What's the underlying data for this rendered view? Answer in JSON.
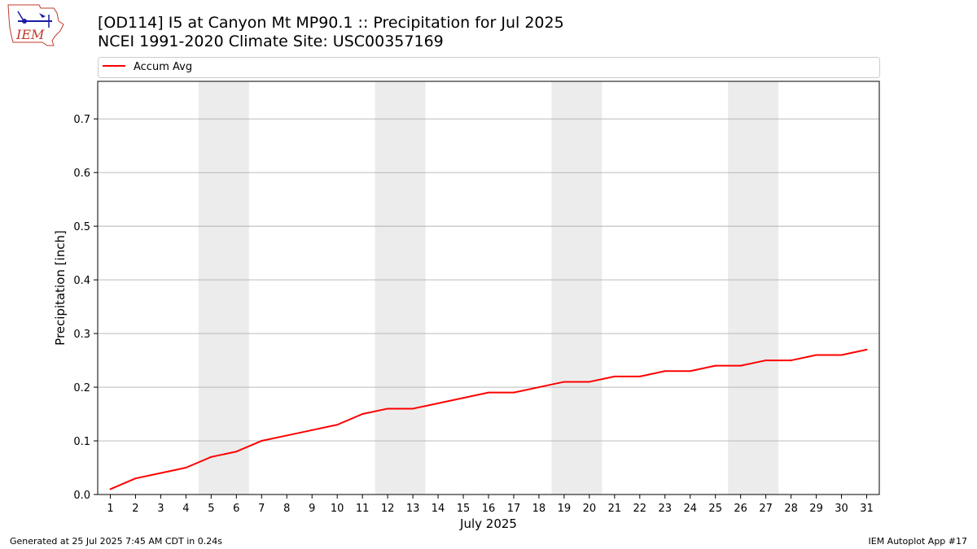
{
  "logo": {
    "text": "IEM"
  },
  "header": {
    "title_line1": "[OD114] I5 at Canyon Mt MP90.1  :: Precipitation for Jul 2025",
    "title_line2": "NCEI 1991-2020 Climate Site: USC00357169"
  },
  "footer": {
    "generated": "Generated at 25 Jul 2025 7:45 AM CDT in 0.24s",
    "app": "IEM Autoplot App #17"
  },
  "colors": {
    "series": "#ff0000",
    "weekend_band": "#ececec",
    "grid": "#b0b0b0"
  },
  "chart_data": {
    "type": "line",
    "xlabel": "July 2025",
    "ylabel": "Precipitation [inch]",
    "xlim": [
      0.5,
      31.5
    ],
    "ylim": [
      0,
      0.77
    ],
    "yticks": [
      0.0,
      0.1,
      0.2,
      0.3,
      0.4,
      0.5,
      0.6,
      0.7
    ],
    "ytick_labels": [
      "0.0",
      "0.1",
      "0.2",
      "0.3",
      "0.4",
      "0.5",
      "0.6",
      "0.7"
    ],
    "x": [
      1,
      2,
      3,
      4,
      5,
      6,
      7,
      8,
      9,
      10,
      11,
      12,
      13,
      14,
      15,
      16,
      17,
      18,
      19,
      20,
      21,
      22,
      23,
      24,
      25,
      26,
      27,
      28,
      29,
      30,
      31
    ],
    "xtick_labels": [
      "1",
      "2",
      "3",
      "4",
      "5",
      "6",
      "7",
      "8",
      "9",
      "10",
      "11",
      "12",
      "13",
      "14",
      "15",
      "16",
      "17",
      "18",
      "19",
      "20",
      "21",
      "22",
      "23",
      "24",
      "25",
      "26",
      "27",
      "28",
      "29",
      "30",
      "31"
    ],
    "grid": "horizontal",
    "legend_position": "top",
    "shaded_days": [
      [
        5,
        6
      ],
      [
        12,
        13
      ],
      [
        19,
        20
      ],
      [
        26,
        27
      ]
    ],
    "series": [
      {
        "name": "Accum Avg",
        "values": [
          0.01,
          0.03,
          0.04,
          0.05,
          0.07,
          0.08,
          0.1,
          0.11,
          0.12,
          0.13,
          0.15,
          0.16,
          0.16,
          0.17,
          0.18,
          0.19,
          0.19,
          0.2,
          0.21,
          0.21,
          0.22,
          0.22,
          0.23,
          0.23,
          0.24,
          0.24,
          0.25,
          0.25,
          0.26,
          0.26,
          0.27
        ]
      }
    ]
  }
}
